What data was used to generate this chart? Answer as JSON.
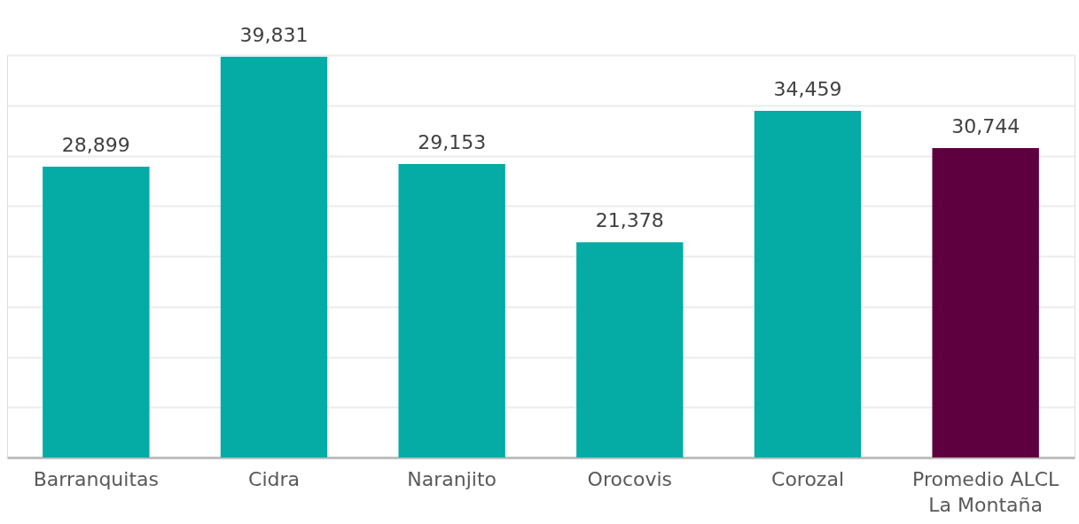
{
  "chart_data": {
    "type": "bar",
    "categories": [
      "Barranquitas",
      "Cidra",
      "Naranjito",
      "Orocovis",
      "Corozal",
      "Promedio ALCL La Montaña"
    ],
    "values": [
      28899,
      39831,
      29153,
      21378,
      34459,
      30744
    ],
    "value_labels": [
      "28,899",
      "39,831",
      "29,153",
      "21,378",
      "34,459",
      "30,744"
    ],
    "colors": [
      "#05aba5",
      "#05aba5",
      "#05aba5",
      "#05aba5",
      "#05aba5",
      "#5e003f"
    ],
    "tick_labels": "x",
    "grid": "y"
  }
}
